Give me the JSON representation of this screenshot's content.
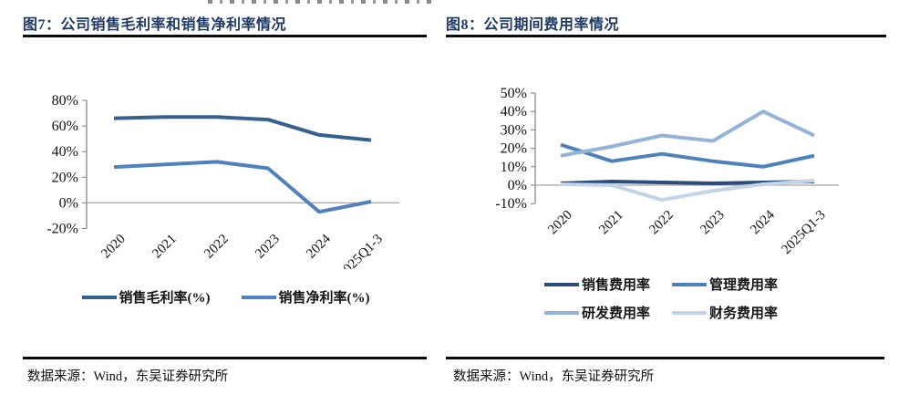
{
  "panels": [
    {
      "title": "图7：公司销售毛利率和销售净利率情况",
      "source": "数据来源：Wind，东吴证券研究所"
    },
    {
      "title": "图8：公司期间费用率情况",
      "source": "数据来源：Wind，东吴证券研究所"
    }
  ],
  "chart_data": [
    {
      "type": "line",
      "title": "图7：公司销售毛利率和销售净利率情况",
      "categories": [
        "2020",
        "2021",
        "2022",
        "2023",
        "2024",
        "2025Q1-3"
      ],
      "series": [
        {
          "name": "销售毛利率(%)",
          "color": "#35618f",
          "values": [
            66,
            67,
            67,
            65,
            53,
            49
          ]
        },
        {
          "name": "销售净利率(%)",
          "color": "#4f81bd",
          "values": [
            28,
            30,
            32,
            27,
            -7,
            1
          ]
        }
      ],
      "ylim": [
        -20,
        80
      ],
      "ytick_step": 20,
      "ytick_labels": [
        "80%",
        "60%",
        "40%",
        "20%",
        "0%",
        "-20%"
      ],
      "grid": false,
      "legend_position": "bottom"
    },
    {
      "type": "line",
      "title": "图8：公司期间费用率情况",
      "categories": [
        "2020",
        "2021",
        "2022",
        "2023",
        "2024",
        "2025Q1-3"
      ],
      "series": [
        {
          "name": "销售费用率",
          "color": "#2b4d7e",
          "values": [
            1,
            2,
            1.5,
            1,
            1.5,
            2
          ]
        },
        {
          "name": "管理费用率",
          "color": "#4f81bd",
          "values": [
            22,
            13,
            17,
            13,
            10,
            16
          ]
        },
        {
          "name": "研发费用率",
          "color": "#95b3d7",
          "values": [
            16,
            21,
            27,
            24,
            40,
            27
          ]
        },
        {
          "name": "财务费用率",
          "color": "#c3d3e8",
          "values": [
            0.5,
            0,
            -8,
            -3,
            0.5,
            2.5
          ]
        }
      ],
      "ylim": [
        -10,
        50
      ],
      "ytick_step": 10,
      "ytick_labels": [
        "50%",
        "40%",
        "30%",
        "20%",
        "10%",
        "0%",
        "-10%"
      ],
      "grid": false,
      "legend_position": "bottom"
    }
  ],
  "axis_style": {
    "axis_color": "#808080",
    "zero_line_color": "#a6a6a6",
    "tick_font_px": 15
  }
}
